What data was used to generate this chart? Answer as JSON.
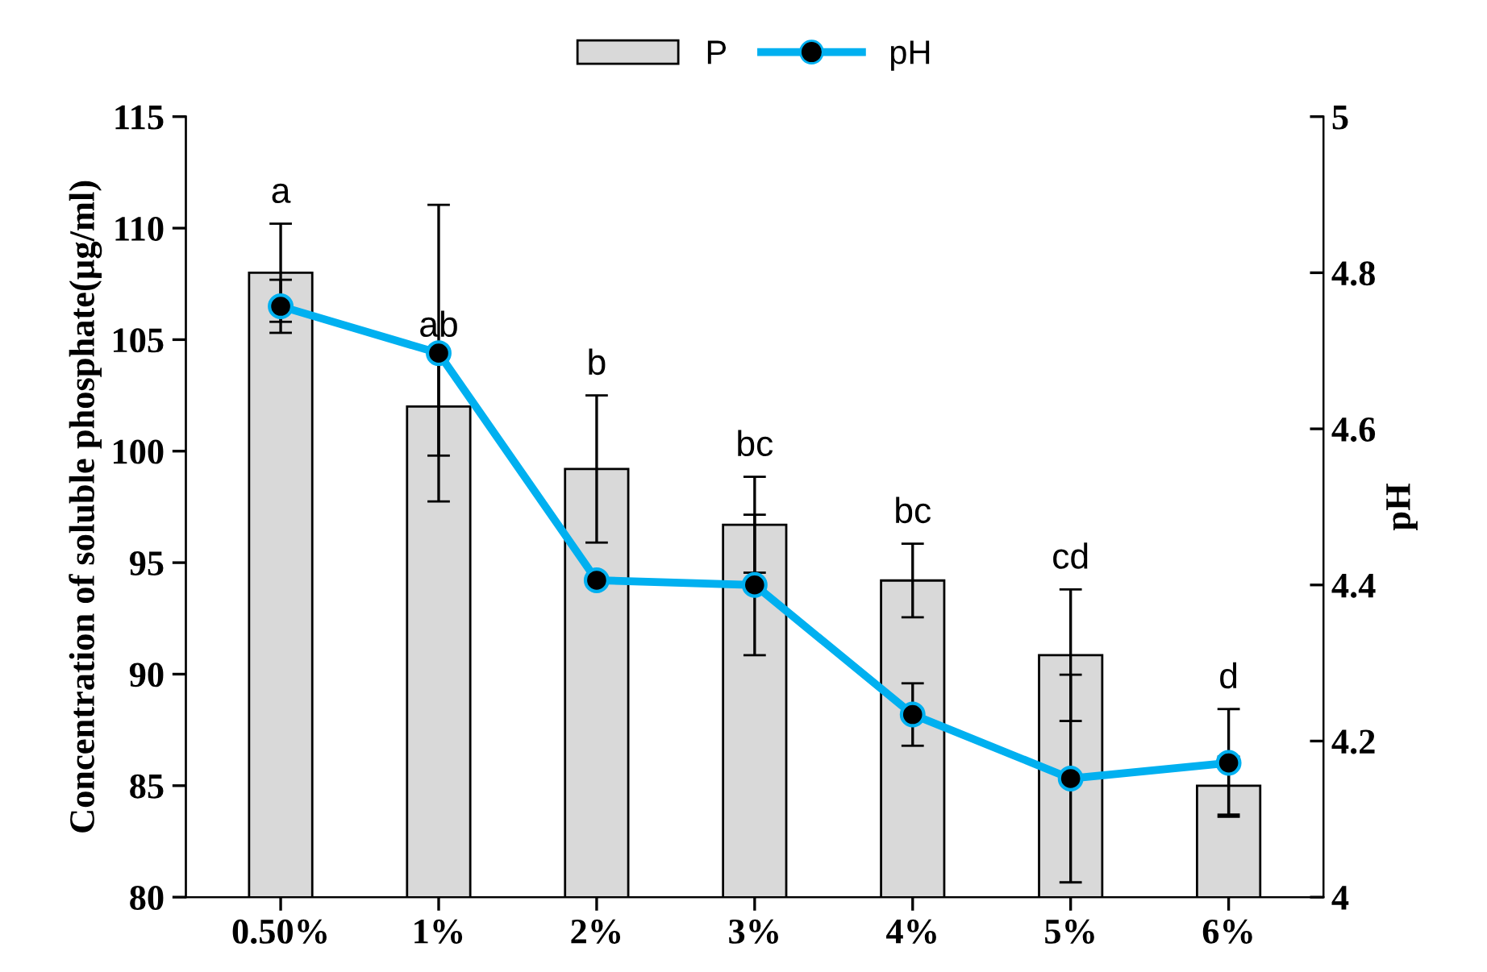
{
  "chart_data": {
    "type": "bar",
    "categories": [
      "0.50%",
      "1%",
      "2%",
      "3%",
      "4%",
      "5%",
      "6%"
    ],
    "ylabel": "Concentration of soluble phosphate(µg/ml)",
    "y2label": "pH",
    "series": [
      {
        "name": "P",
        "color": "#d9d9d9",
        "values": [
          108.0,
          102.0,
          99.2,
          96.7,
          94.2,
          90.85,
          85.0
        ],
        "errors": [
          2.2,
          2.2,
          3.3,
          2.15,
          1.65,
          2.95,
          1.3
        ]
      },
      {
        "name": "pH",
        "type": "line",
        "axis": "y2",
        "color": "#00b0f0",
        "values": [
          4.757,
          4.697,
          4.406,
          4.4,
          4.234,
          4.152,
          4.172
        ],
        "errors": [
          0.034,
          0.19,
          null,
          0.09,
          0.04,
          0.133,
          0.069
        ]
      }
    ],
    "ylim": [
      80,
      115
    ],
    "yticks": [
      80,
      85,
      90,
      95,
      100,
      105,
      110,
      115
    ],
    "y2lim": [
      4,
      5
    ],
    "y2ticks": [
      4,
      4.2,
      4.4,
      4.6,
      4.8,
      5
    ],
    "marker": "circle",
    "line_style": "solid",
    "grid": false,
    "legend": "top",
    "annotations": [
      "a",
      "ab",
      "b",
      "bc",
      "bc",
      "cd",
      "d"
    ]
  }
}
